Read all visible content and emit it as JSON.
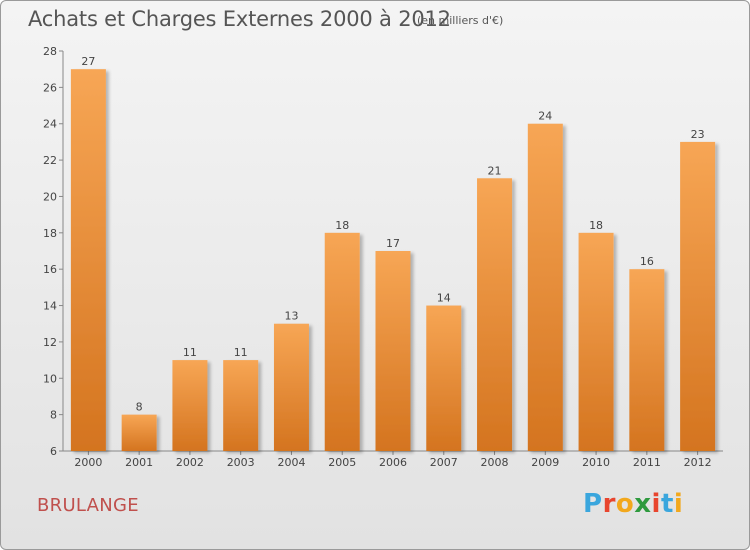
{
  "title": "Achats et Charges Externes 2000 à 2012",
  "unit_note": "(en milliers d'€)",
  "commune": "BRULANGE",
  "logo": {
    "text": "Proxiti",
    "letters": [
      "P",
      "r",
      "o",
      "x",
      "i",
      "t",
      "i"
    ],
    "colors": [
      "#3aa6dd",
      "#e8452e",
      "#f2a81d",
      "#2e9a3e",
      "#e8452e",
      "#3aa6dd",
      "#f2a81d"
    ]
  },
  "colors": {
    "bar_top": "#f7a655",
    "bar_bottom": "#d4741f",
    "commune_text": "#c0504d"
  },
  "chart_data": {
    "type": "bar",
    "title": "Achats et Charges Externes 2000 à 2012",
    "subtitle": "(en milliers d'€)",
    "xlabel": "",
    "ylabel": "",
    "categories": [
      "2000",
      "2001",
      "2002",
      "2003",
      "2004",
      "2005",
      "2006",
      "2007",
      "2008",
      "2009",
      "2010",
      "2011",
      "2012"
    ],
    "values": [
      27,
      8,
      11,
      11,
      13,
      18,
      17,
      14,
      21,
      24,
      18,
      16,
      23
    ],
    "ylim": [
      6,
      28
    ],
    "yticks": [
      6,
      8,
      10,
      12,
      14,
      16,
      18,
      20,
      22,
      24,
      26,
      28
    ],
    "grid": false,
    "legend": "none"
  }
}
